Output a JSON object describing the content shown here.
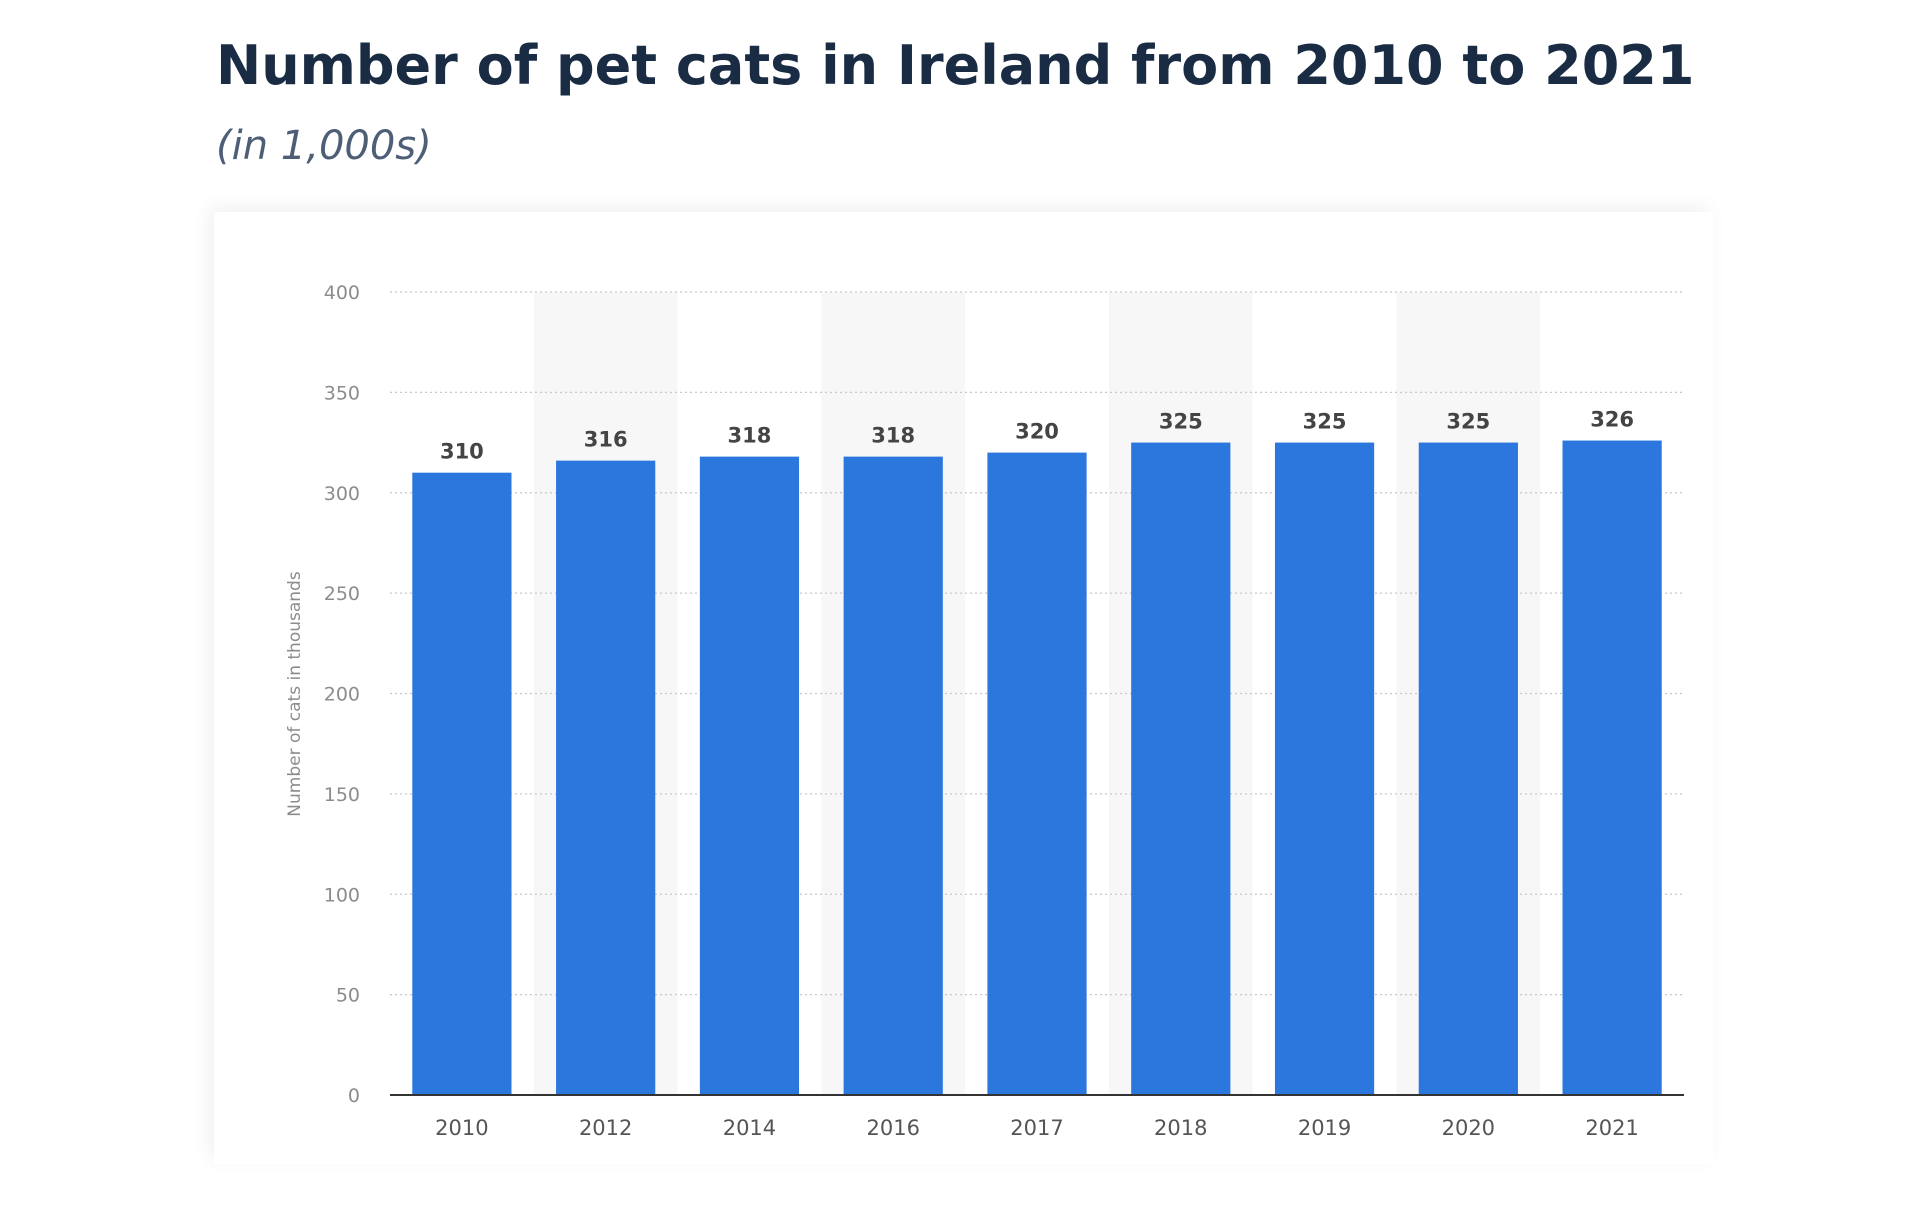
{
  "chart_data": {
    "type": "bar",
    "title": "Number of pet cats in Ireland from 2010 to 2021",
    "subtitle": "(in 1,000s)",
    "xlabel": "",
    "ylabel": "Number of cats in thousands",
    "categories": [
      "2010",
      "2012",
      "2014",
      "2016",
      "2017",
      "2018",
      "2019",
      "2020",
      "2021"
    ],
    "values": [
      310,
      316,
      318,
      318,
      320,
      325,
      325,
      325,
      326
    ],
    "ylim": [
      0,
      400
    ],
    "yticks": [
      0,
      50,
      100,
      150,
      200,
      250,
      300,
      350,
      400
    ],
    "grid": "horizontal dotted",
    "legend": "none",
    "colors": {
      "bar": "#2b77de",
      "alt_band": "#f7f7f7",
      "grid": "#c8c8c8",
      "axis": "#333333"
    }
  }
}
